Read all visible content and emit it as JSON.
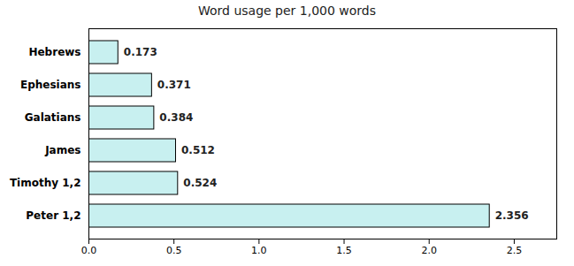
{
  "chart_data": {
    "type": "bar",
    "orientation": "horizontal",
    "title": "Word usage per 1,000 words",
    "categories": [
      "Hebrews",
      "Ephesians",
      "Galatians",
      "James",
      "Timothy 1,2",
      "Peter 1,2"
    ],
    "values": [
      0.173,
      0.371,
      0.384,
      0.512,
      0.524,
      2.356
    ],
    "color": "#c8f0f0",
    "xlim": [
      0,
      2.75
    ],
    "xticks": [
      {
        "value": 0.0,
        "label": "0.0"
      },
      0.5,
      {
        "value": 1.0,
        "label": "1.0"
      },
      1.5,
      {
        "value": 2.0,
        "label": "2.0"
      },
      2.5
    ],
    "data_labels": true,
    "grid": false
  }
}
